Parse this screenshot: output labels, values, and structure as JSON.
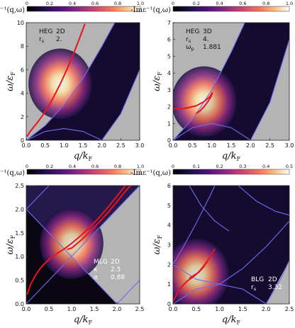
{
  "chart_data": [
    {
      "type": "heatmap",
      "colorbar": {
        "title": "-Imε⁻¹(q,ω)",
        "ticks": [
          "0",
          "0.2",
          "0.4",
          "0.6",
          "0.8",
          "1.0"
        ],
        "range": [
          0,
          1.0
        ]
      },
      "xlabel": "q/k",
      "xlabel_sub": "F",
      "ylabel": "ω/ε",
      "ylabel_sub": "F",
      "xlim": [
        0,
        3.0
      ],
      "ylim": [
        0,
        10
      ],
      "xticks": [
        "0.0",
        "0.5",
        "1.0",
        "1.5",
        "2.0",
        "2.5",
        "3.0"
      ],
      "yticks": [
        "0",
        "2",
        "4",
        "6",
        "8",
        "10"
      ],
      "annotations": [
        {
          "label": "HEG",
          "value": "2D"
        },
        {
          "label": "r",
          "sub": "s",
          "value": "2."
        }
      ],
      "plasmon": [
        [
          0.02,
          0.32
        ],
        [
          0.1,
          0.73
        ],
        [
          0.2,
          1.13
        ],
        [
          0.3,
          1.53
        ],
        [
          0.4,
          1.96
        ],
        [
          0.5,
          2.43
        ],
        [
          0.6,
          2.96
        ],
        [
          0.7,
          3.54
        ],
        [
          0.8,
          4.15
        ],
        [
          0.9,
          4.8
        ],
        [
          1.0,
          5.49
        ],
        [
          1.1,
          6.21
        ],
        [
          1.2,
          6.96
        ],
        [
          1.3,
          7.76
        ],
        [
          1.4,
          8.59
        ],
        [
          1.5,
          9.45
        ],
        [
          1.55,
          9.9
        ]
      ],
      "boundary_curves": [
        [
          [
            0,
            0
          ],
          [
            0.5,
            1.25
          ],
          [
            1.0,
            3.0
          ],
          [
            1.5,
            5.25
          ],
          [
            2.0,
            8.0
          ],
          [
            2.34,
            10
          ]
        ],
        [
          [
            0,
            0
          ],
          [
            0.5,
            0.75
          ],
          [
            1.0,
            1.0
          ],
          [
            1.5,
            0.75
          ],
          [
            2.0,
            0
          ]
        ],
        [
          [
            2.0,
            0
          ],
          [
            2.5,
            2.25
          ],
          [
            3.0,
            6.0
          ]
        ]
      ]
    },
    {
      "type": "heatmap",
      "colorbar": {
        "title": "-Imε⁻¹(q,ω)",
        "ticks": [
          "0",
          "0.2",
          "0.4",
          "0.6",
          "0.8",
          "1.0"
        ],
        "range": [
          0,
          1.0
        ]
      },
      "xlabel": "q/k",
      "xlabel_sub": "F",
      "ylabel": "ω/ε",
      "ylabel_sub": "F",
      "xlim": [
        0,
        3.0
      ],
      "ylim": [
        0,
        7
      ],
      "xticks": [
        "0.0",
        "0.5",
        "1.0",
        "1.5",
        "2.0",
        "2.5",
        "3.0"
      ],
      "yticks": [
        "0",
        "1",
        "2",
        "3",
        "4",
        "5",
        "6",
        "7"
      ],
      "annotations": [
        {
          "label": "HEG",
          "value": "3D"
        },
        {
          "label": "r",
          "sub": "s",
          "value": "4."
        },
        {
          "label": "ω",
          "sub": "p",
          "value": "1.881"
        }
      ],
      "plasmon": [
        [
          0,
          1.881
        ],
        [
          0.3,
          1.9
        ],
        [
          0.6,
          2.05
        ],
        [
          0.8,
          2.3
        ],
        [
          0.95,
          2.6
        ],
        [
          1.02,
          2.85
        ],
        [
          0.98,
          2.6
        ],
        [
          0.9,
          2.3
        ],
        [
          0.8,
          2.0
        ],
        [
          0.7,
          1.75
        ],
        [
          0.6,
          1.6
        ]
      ],
      "boundary_curves": [
        [
          [
            0,
            0
          ],
          [
            0.5,
            1.25
          ],
          [
            1.0,
            3.0
          ],
          [
            1.5,
            5.25
          ],
          [
            1.85,
            7
          ]
        ],
        [
          [
            0,
            0
          ],
          [
            0.5,
            0.75
          ],
          [
            1.0,
            1.0
          ],
          [
            1.5,
            0.75
          ],
          [
            2.0,
            0
          ]
        ],
        [
          [
            2.0,
            0
          ],
          [
            2.5,
            2.25
          ],
          [
            3.0,
            6.0
          ]
        ]
      ]
    },
    {
      "type": "heatmap",
      "colorbar": {
        "title": "-Imε⁻¹(q,ω)",
        "ticks": [
          "0",
          "0.2",
          "0.4",
          "0.6",
          "0.8",
          "1.0"
        ],
        "range": [
          0,
          1.0
        ]
      },
      "xlabel": "q/k",
      "xlabel_sub": "F",
      "ylabel": "ω/ε",
      "ylabel_sub": "F",
      "xlim": [
        0,
        2.5
      ],
      "ylim": [
        0,
        2.5
      ],
      "xticks": [
        "0.0",
        "0.5",
        "1.0",
        "1.5",
        "2.0",
        "2.5"
      ],
      "yticks": [
        "0.0",
        "0.5",
        "1.0",
        "1.5",
        "2.0",
        "2.5"
      ],
      "annotations": [
        {
          "label": "MLG",
          "value": "2D"
        },
        {
          "label": "κ",
          "value": "2.5"
        },
        {
          "label": "α",
          "value": "0.88"
        }
      ],
      "plasmon": [
        [
          0.02,
          0.2
        ],
        [
          0.1,
          0.42
        ],
        [
          0.2,
          0.6
        ],
        [
          0.3,
          0.74
        ],
        [
          0.4,
          0.85
        ],
        [
          0.55,
          0.98
        ],
        [
          0.7,
          1.08
        ],
        [
          0.85,
          1.17
        ],
        [
          1.0,
          1.28
        ],
        [
          1.2,
          1.44
        ],
        [
          1.4,
          1.62
        ],
        [
          1.6,
          1.82
        ],
        [
          1.8,
          2.04
        ],
        [
          2.0,
          2.28
        ],
        [
          2.2,
          2.52
        ]
      ],
      "plasmon_lower": [
        [
          0.9,
          1.15
        ],
        [
          1.0,
          1.18
        ],
        [
          1.2,
          1.34
        ],
        [
          1.4,
          1.52
        ],
        [
          1.6,
          1.72
        ],
        [
          1.8,
          1.93
        ],
        [
          2.0,
          2.16
        ],
        [
          2.2,
          2.4
        ],
        [
          2.3,
          2.5
        ]
      ],
      "boundary_curves": [
        [
          [
            0,
            0
          ],
          [
            2.5,
            2.5
          ]
        ],
        [
          [
            0,
            2.0
          ],
          [
            2.0,
            0
          ]
        ],
        [
          [
            2.0,
            0
          ],
          [
            2.5,
            0.5
          ]
        ],
        [
          [
            0,
            2.5
          ],
          [
            0.25,
            2.5
          ]
        ],
        [
          [
            0.0,
            2.0
          ],
          [
            0.5,
            2.5
          ]
        ]
      ]
    },
    {
      "type": "heatmap",
      "colorbar": {
        "title": "-Imε⁻¹(q,ω)",
        "ticks": [
          "0",
          "0.1",
          "0.2",
          "0.3",
          "0.4",
          "0.5"
        ],
        "range": [
          0,
          0.5
        ]
      },
      "xlabel": "q/k",
      "xlabel_sub": "F",
      "ylabel": "ω/ε",
      "ylabel_sub": "F",
      "xlim": [
        0,
        2.5
      ],
      "ylim": [
        0,
        6
      ],
      "xticks": [
        "0.0",
        "0.5",
        "1.0",
        "1.5",
        "2.0",
        "2.5"
      ],
      "yticks": [
        "0",
        "1",
        "2",
        "3",
        "4",
        "5",
        "6"
      ],
      "annotations": [
        {
          "label": "BLG",
          "value": "2D"
        },
        {
          "label": "r",
          "sub": "s",
          "value": "3.32"
        }
      ],
      "plasmon": [
        [
          0.0,
          0.1
        ],
        [
          0.1,
          0.6
        ],
        [
          0.2,
          0.9
        ],
        [
          0.3,
          1.15
        ],
        [
          0.4,
          1.32
        ],
        [
          0.5,
          1.5
        ],
        [
          0.6,
          1.75
        ],
        [
          0.7,
          2.05
        ],
        [
          0.8,
          2.4
        ],
        [
          0.9,
          2.8
        ]
      ],
      "plasmon_lower": [
        [
          0.35,
          1.3
        ],
        [
          0.45,
          1.45
        ],
        [
          0.55,
          1.6
        ],
        [
          0.65,
          1.85
        ],
        [
          0.75,
          2.2
        ]
      ],
      "boundary_curves": [
        [
          [
            0,
            0
          ],
          [
            0.5,
            0.75
          ],
          [
            1.0,
            1.0
          ],
          [
            1.5,
            0.75
          ],
          [
            2.0,
            0
          ]
        ],
        [
          [
            0,
            2.0
          ],
          [
            0.5,
            1.25
          ],
          [
            1.0,
            1.0
          ]
        ],
        [
          [
            0,
            2.0
          ],
          [
            0.2,
            2.8
          ],
          [
            0.5,
            4.1
          ],
          [
            0.8,
            5.5
          ],
          [
            0.9,
            6.0
          ]
        ],
        [
          [
            0.35,
            6.0
          ],
          [
            0.6,
            5.0
          ],
          [
            0.9,
            4.2
          ],
          [
            1.2,
            3.7
          ]
        ],
        [
          [
            1.0,
            1.0
          ],
          [
            1.5,
            1.8
          ],
          [
            2.0,
            2.9
          ],
          [
            2.5,
            4.2
          ]
        ],
        [
          [
            2.0,
            0
          ],
          [
            2.3,
            1.2
          ],
          [
            2.5,
            2.2
          ]
        ],
        [
          [
            1.4,
            6.0
          ],
          [
            1.8,
            5.2
          ],
          [
            2.2,
            4.7
          ],
          [
            2.5,
            4.5
          ]
        ]
      ]
    }
  ]
}
